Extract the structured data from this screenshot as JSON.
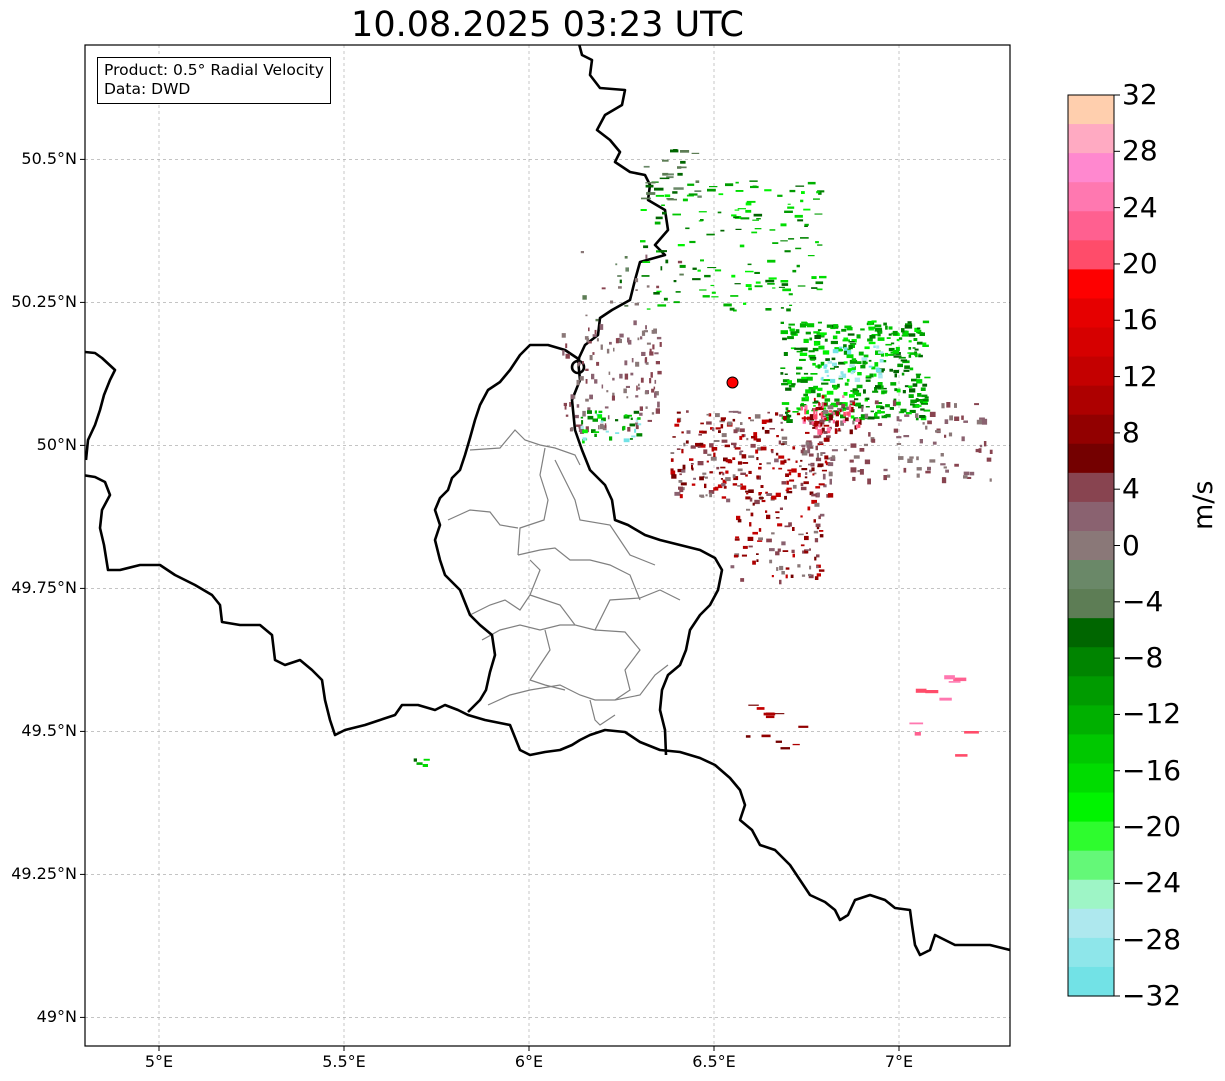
{
  "title": "10.08.2025 03:23 UTC",
  "info": {
    "product": "Product: 0.5° Radial Velocity",
    "data": "Data: DWD"
  },
  "map": {
    "lon_range": [
      4.8,
      7.3
    ],
    "lat_range": [
      48.95,
      50.7
    ],
    "lat_ticks": [
      {
        "value": 50.5,
        "label": "50.5°N"
      },
      {
        "value": 50.25,
        "label": "50.25°N"
      },
      {
        "value": 50.0,
        "label": "50°N"
      },
      {
        "value": 49.75,
        "label": "49.75°N"
      },
      {
        "value": 49.5,
        "label": "49.5°N"
      },
      {
        "value": 49.25,
        "label": "49.25°N"
      },
      {
        "value": 49.0,
        "label": "49°N"
      }
    ],
    "lon_ticks": [
      {
        "value": 5.0,
        "label": "5°E"
      },
      {
        "value": 5.5,
        "label": "5.5°E"
      },
      {
        "value": 6.0,
        "label": "6°E"
      },
      {
        "value": 6.5,
        "label": "6.5°E"
      },
      {
        "value": 7.0,
        "label": "7°E"
      }
    ],
    "radar_site": {
      "lon": 6.55,
      "lat": 50.11,
      "color": "#ff0000"
    },
    "grid_on": true
  },
  "colorbar": {
    "label": "m/s",
    "ticks": [
      "32",
      "28",
      "24",
      "20",
      "16",
      "12",
      "8",
      "4",
      "0",
      "−4",
      "−8",
      "−12",
      "−16",
      "−20",
      "−24",
      "−28",
      "−32"
    ],
    "colors_top_to_bottom": [
      "#ffcfae",
      "#ffaac2",
      "#ff88cf",
      "#ff78b0",
      "#ff6090",
      "#ff4c6a",
      "#fe0000",
      "#e60000",
      "#d60000",
      "#c40000",
      "#ad0000",
      "#920000",
      "#740000",
      "#884450",
      "#8a6270",
      "#8a7878",
      "#6a8868",
      "#5d7d55",
      "#006600",
      "#008400",
      "#009b00",
      "#00b000",
      "#00c800",
      "#00dc00",
      "#00f400",
      "#2efc2e",
      "#64f878",
      "#9ef5c6",
      "#aee8ee",
      "#8ee6ea",
      "#72e2e6"
    ]
  }
}
